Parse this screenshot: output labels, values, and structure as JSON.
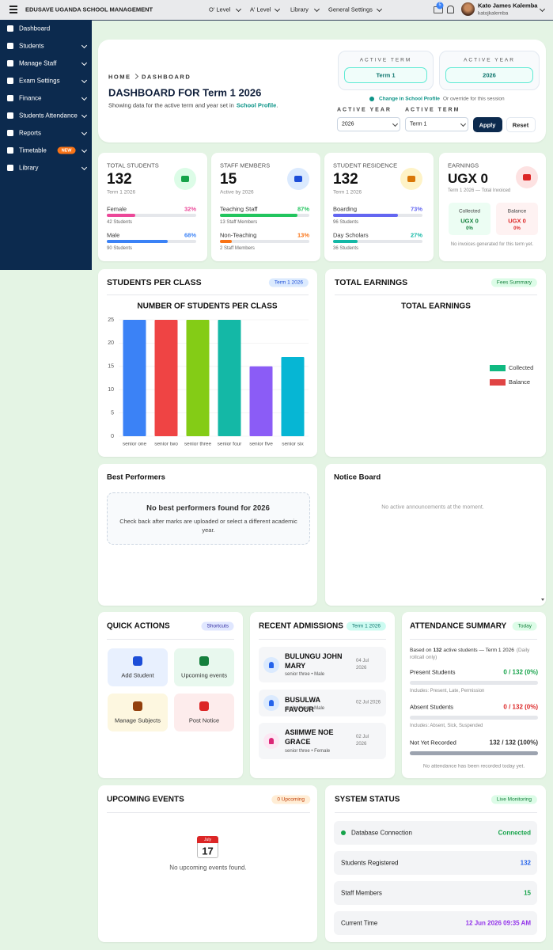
{
  "topbar": {
    "brand": "EDUSAVE UGANDA SCHOOL MANAGEMENT",
    "menus": [
      "O' Level",
      "A' Level",
      "Library",
      "General Settings"
    ],
    "notifications": 5,
    "user": {
      "name": "Kato James Kalemba",
      "username": "katojkalemba"
    }
  },
  "sidebar": {
    "items": [
      {
        "label": "Dashboard"
      },
      {
        "label": "Students"
      },
      {
        "label": "Manage Staff"
      },
      {
        "label": "Exam Settings"
      },
      {
        "label": "Finance"
      },
      {
        "label": "Students Attendance"
      },
      {
        "label": "Reports"
      },
      {
        "label": "Timetable",
        "badge": "NEW"
      },
      {
        "label": "Library"
      }
    ]
  },
  "header": {
    "breadcrumb": [
      "HOME",
      "DASHBOARD"
    ],
    "title": "DASHBOARD FOR Term 1 2026",
    "subtitle": "Showing data for the active term and year set in",
    "subtitle_link": "School Profile",
    "subtitle_end": ".",
    "active_term": {
      "label": "ACTIVE TERM",
      "value": "Term 1"
    },
    "active_year": {
      "label": "ACTIVE YEAR",
      "value": "2026"
    },
    "change_link": "Change in School Profile",
    "override_note": "Or override for this session",
    "filters": [
      {
        "label": "ACTIVE YEAR",
        "value": "2026"
      },
      {
        "label": "ACTIVE TERM",
        "value": "Term 1"
      }
    ],
    "buttons": [
      "Apply",
      "Reset"
    ]
  },
  "stats": [
    {
      "label": "TOTAL STUDENTS",
      "value": 132,
      "note": "Term 1 2026",
      "rows": [
        {
          "label": "Female",
          "percent": {
            "value": 32,
            "label": "32%"
          },
          "detail": "42 Students",
          "color": "#ec4899"
        },
        {
          "label": "Male",
          "percent": {
            "value": 68,
            "label": "68%"
          },
          "detail": "90 Students",
          "color": "#3b82f6"
        }
      ]
    },
    {
      "label": "STAFF MEMBERS",
      "value": 15,
      "note": "Active by 2026",
      "rows": [
        {
          "label": "Teaching Staff",
          "percent": {
            "value": 87,
            "label": "87%"
          },
          "detail": "13 Staff Members",
          "color": "#22c55e"
        },
        {
          "label": "Non-Teaching",
          "percent": {
            "value": 13,
            "label": "13%"
          },
          "detail": "2 Staff Members",
          "color": "#f97316"
        }
      ]
    },
    {
      "label": "STUDENT RESIDENCE",
      "value": 132,
      "note": "Term 1 2026",
      "rows": [
        {
          "label": "Boarding",
          "percent": {
            "value": 73,
            "label": "73%"
          },
          "detail": "96 Students",
          "color": "#6366f1"
        },
        {
          "label": "Day Scholars",
          "percent": {
            "value": 27,
            "label": "27%"
          },
          "detail": "36 Students",
          "color": "#14b8a6"
        }
      ]
    }
  ],
  "earnings": {
    "label": "EARNINGS",
    "value": "UGX 0",
    "note": "Term 1 2026 — Total Invoiced",
    "boxes": [
      {
        "label": "Collected",
        "value": "UGX 0",
        "percent": "0%"
      },
      {
        "label": "Balance",
        "value": "UGX 0",
        "percent": "0%"
      }
    ],
    "empty_note": "No invoices generated for this term yet."
  },
  "panels": {
    "students_per_class": {
      "title": "STUDENTS PER CLASS",
      "badge": "Term 1 2026"
    },
    "total_earnings": {
      "title": "TOTAL EARNINGS",
      "badge": "Fees Summary"
    }
  },
  "chart_data": [
    {
      "type": "bar",
      "title": "NUMBER OF STUDENTS PER CLASS",
      "categories": [
        "senior one",
        "senior two",
        "senior three",
        "senior four",
        "senior five",
        "senior six"
      ],
      "values": [
        25,
        25,
        25,
        25,
        15,
        17
      ],
      "colors": [
        "#3b82f6",
        "#ef4444",
        "#84cc16",
        "#14b8a6",
        "#8b5cf6",
        "#06b6d4"
      ],
      "ylim": [
        0,
        25
      ],
      "yticks": [
        0,
        5,
        10,
        15,
        20,
        25
      ],
      "grid": true
    },
    {
      "type": "doughnut",
      "title": "TOTAL EARNINGS",
      "categories": [
        "Collected",
        "Balance"
      ],
      "values": [
        0,
        0
      ],
      "colors": [
        "#10b981",
        "#e04444"
      ],
      "legend": "right"
    }
  ],
  "best_performers": {
    "title": "Best Performers",
    "empty_title": "No best performers found for 2026",
    "empty_text": "Check back after marks are uploaded or select a different academic year."
  },
  "notice_board": {
    "title": "Notice Board",
    "empty_text": "No active announcements at the moment."
  },
  "quick_actions": {
    "title": "QUICK ACTIONS",
    "badge": "Shortcuts",
    "actions": [
      "Add Student",
      "Upcoming events",
      "Manage Subjects",
      "Post Notice"
    ]
  },
  "recent_admissions": {
    "title": "RECENT ADMISSIONS",
    "badge": "Term 1 2026",
    "students": [
      {
        "name": "BULUNGU JOHN MARY",
        "detail": "senior three • Male",
        "date": "04 Jul 2026"
      },
      {
        "name": "BUSULWA FAVOUR",
        "detail": "senior three • Male",
        "date": "02 Jul 2026"
      },
      {
        "name": "ASIIMWE NOE GRACE",
        "detail": "senior three • Female",
        "date": "02 Jul 2026"
      }
    ]
  },
  "attendance": {
    "title": "ATTENDANCE SUMMARY",
    "badge": "Today",
    "intro_before": "Based on",
    "active_students": 132,
    "intro_after": "active students — Term 1 2026",
    "intro_note": "(Daily rollcall only)",
    "rows": [
      {
        "label": "Present Students",
        "result": {
          "value": 0,
          "label": "0 / 132 (0%)"
        },
        "note": "Includes: Present, Late, Permission"
      },
      {
        "label": "Absent Students",
        "result": {
          "value": 0,
          "label": "0 / 132 (0%)"
        },
        "note": "Includes: Absent, Sick, Suspended"
      },
      {
        "label": "Not Yet Recorded",
        "result": {
          "value": 100,
          "label": "132 / 132 (100%)"
        }
      }
    ],
    "footer": "No attendance has been recorded today yet."
  },
  "upcoming_events": {
    "title": "UPCOMING EVENTS",
    "badge": "0 Upcoming",
    "icon_month": "July",
    "icon_day": 17,
    "empty_text": "No upcoming events found."
  },
  "system_status": {
    "title": "SYSTEM STATUS",
    "badge": "Live Monitoring",
    "rows": [
      {
        "label": "Database Connection",
        "value": "Connected"
      },
      {
        "label": "Students Registered",
        "value": 132
      },
      {
        "label": "Staff Members",
        "value": 15
      },
      {
        "label": "Current Time",
        "value": "12 Jun 2026 09:35 AM"
      }
    ]
  }
}
